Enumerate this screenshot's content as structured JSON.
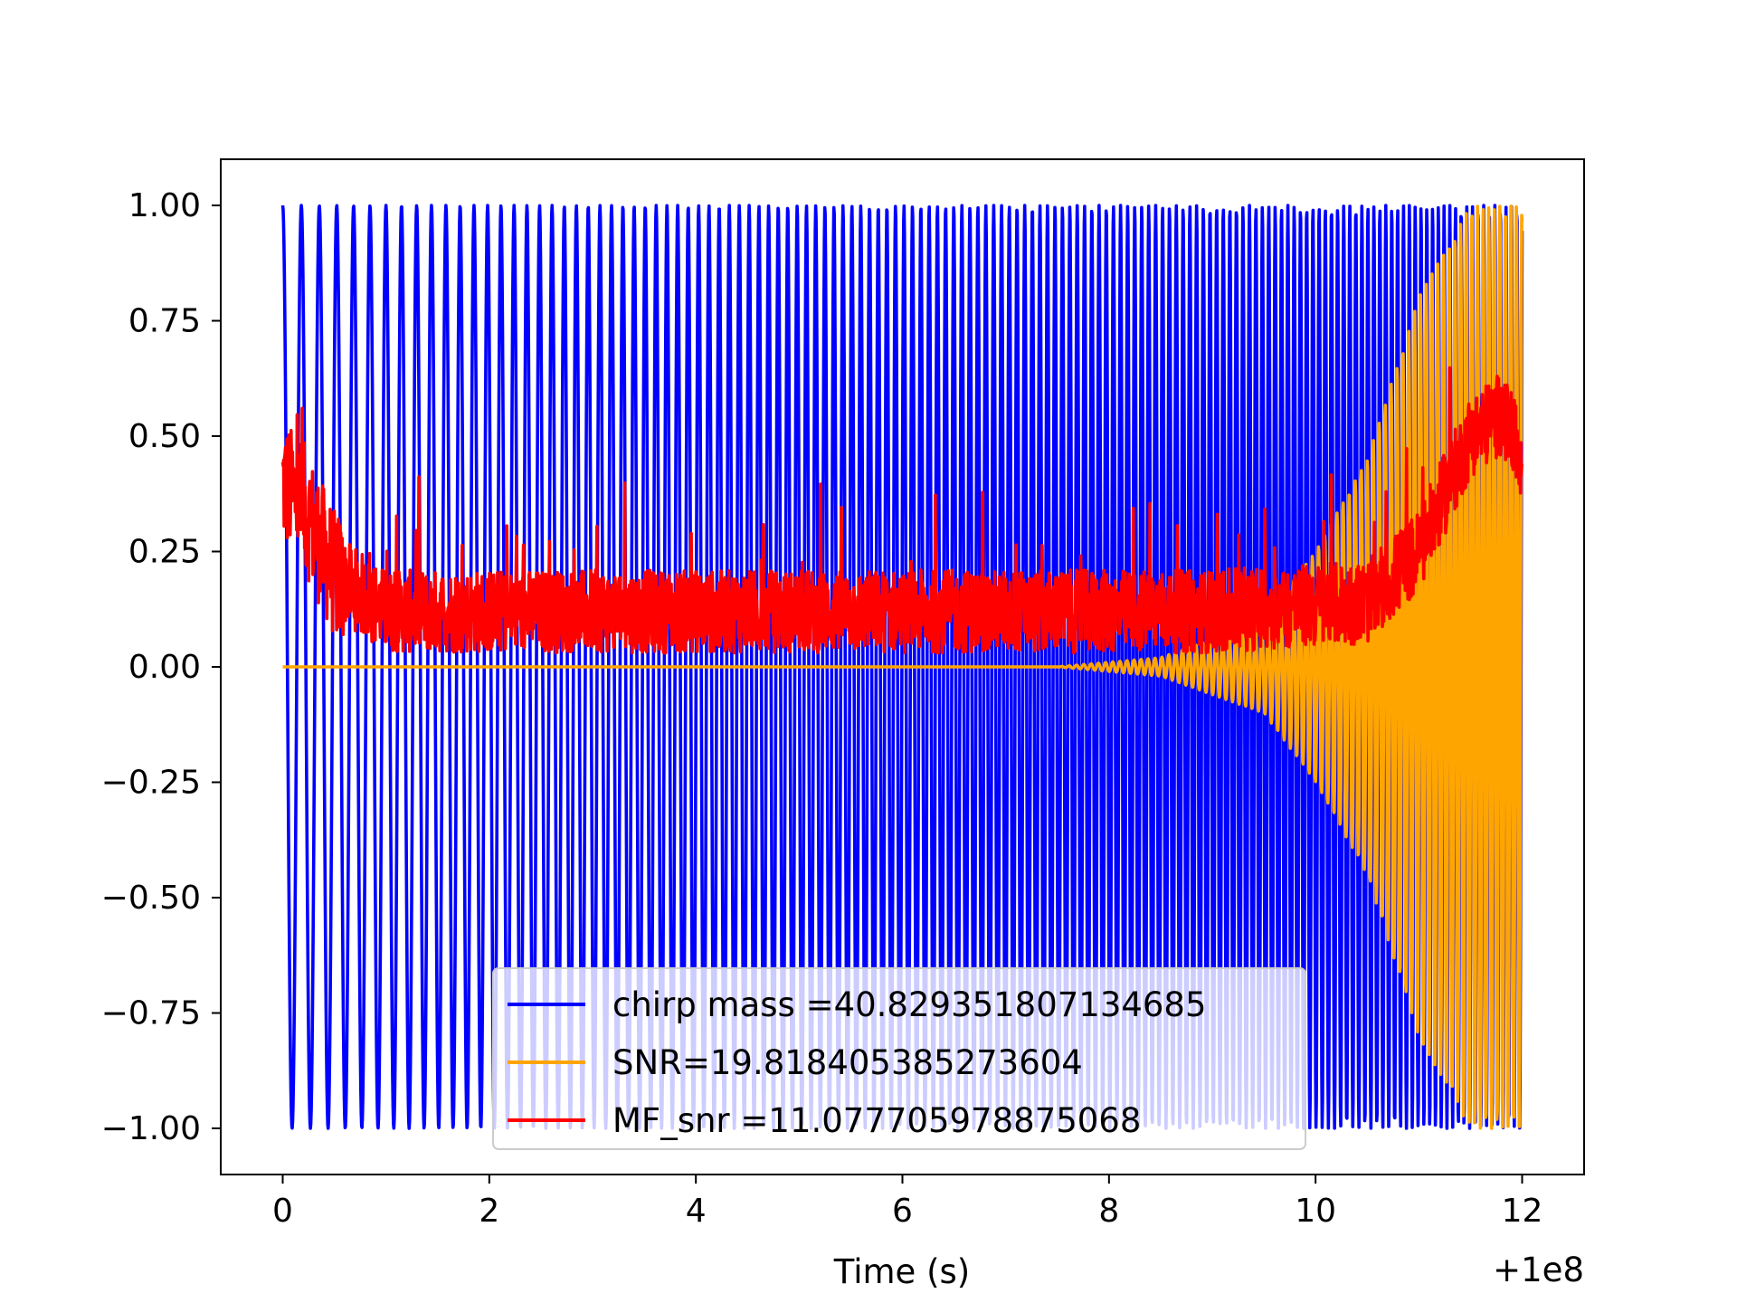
{
  "chart_data": {
    "type": "line",
    "title": "",
    "xlabel": "Time (s)",
    "ylabel": "",
    "x_offset_label": "+1e8",
    "xlim": [
      -0.6,
      12.6
    ],
    "ylim": [
      -1.1,
      1.1
    ],
    "x_ticks": [
      0,
      2,
      4,
      6,
      8,
      10,
      12
    ],
    "x_tick_labels": [
      "0",
      "2",
      "4",
      "6",
      "8",
      "10",
      "12"
    ],
    "y_ticks": [
      1.0,
      0.75,
      0.5,
      0.25,
      0.0,
      -0.25,
      -0.5,
      -0.75,
      -1.0
    ],
    "y_tick_labels": [
      "1.00",
      "0.75",
      "0.50",
      "0.25",
      "0.00",
      "−0.25",
      "−0.50",
      "−0.75",
      "−1.00"
    ],
    "grid": false,
    "legend_placement": "lower center",
    "series": [
      {
        "name": "chirp mass =40.829351807134685",
        "color": "#0000ff",
        "description_of_shape": "oscillates between -1 and 1; visible only at x 0-0.3 and x 8.5-12 (otherwise hidden under other lines)",
        "x_start": 0.0,
        "x_end": 12.0
      },
      {
        "name": "SNR=19.818405385273604",
        "color": "#ffa500",
        "envelope": {
          "x": [
            0,
            7.5,
            8.5,
            9.5,
            10.0,
            10.5,
            11.0,
            11.5,
            12.0
          ],
          "amp": [
            0.0,
            0.0,
            0.02,
            0.1,
            0.25,
            0.45,
            0.8,
            1.0,
            1.0
          ]
        },
        "x_start": 0.0,
        "x_end": 12.0
      },
      {
        "name": "MF_snr =11.077705978875068",
        "color": "#ff0000",
        "trend": {
          "x": [
            0,
            0.2,
            0.5,
            1.0,
            2.0,
            6.0,
            9.0,
            10.5,
            11.0,
            11.5,
            11.8,
            12.0
          ],
          "y": [
            0.4,
            0.35,
            0.2,
            0.12,
            0.12,
            0.12,
            0.12,
            0.14,
            0.25,
            0.5,
            0.55,
            0.45
          ]
        },
        "x_start": 0.0,
        "x_end": 12.0
      }
    ]
  }
}
